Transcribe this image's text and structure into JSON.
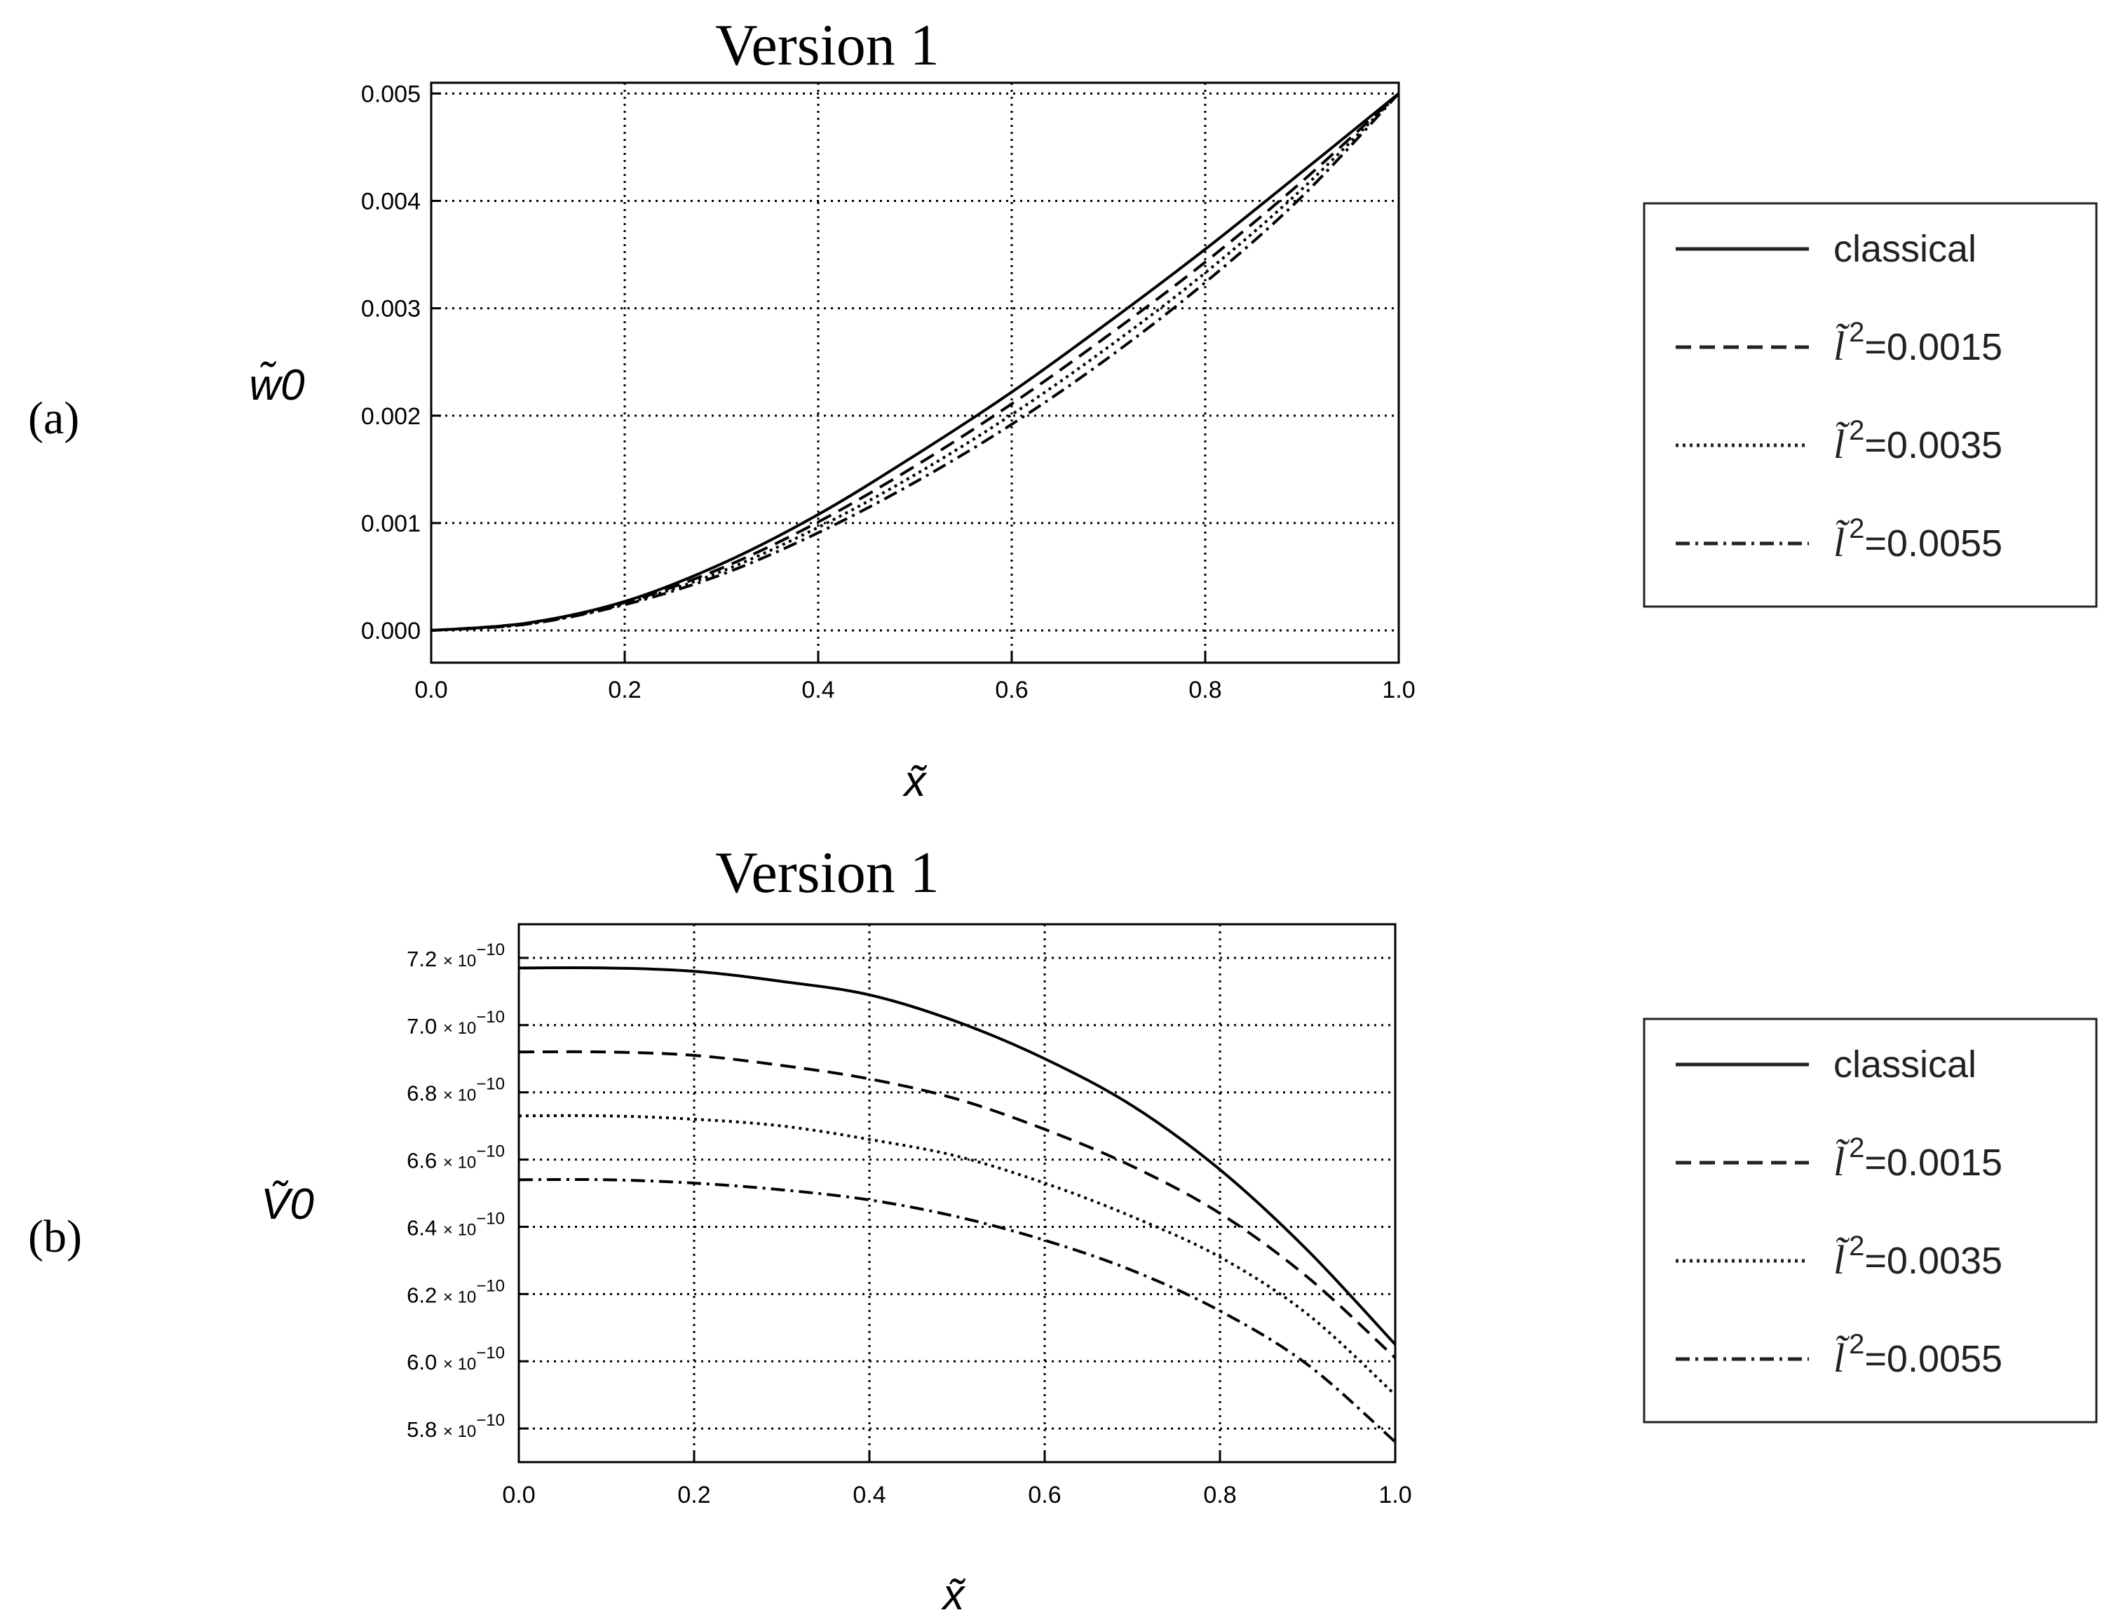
{
  "chart_data": [
    {
      "type": "line",
      "panel_label": "(a)",
      "title": "Version 1",
      "xlabel": "x̃",
      "ylabel": "w̃0",
      "xlim": [
        0,
        1
      ],
      "ylim": [
        -0.0003,
        0.0051
      ],
      "x_ticks": [
        "0.0",
        "0.2",
        "0.4",
        "0.6",
        "0.8",
        "1.0"
      ],
      "y_ticks": [
        "0.000",
        "0.001",
        "0.002",
        "0.003",
        "0.004",
        "0.005"
      ],
      "grid": true,
      "legend_position": "right",
      "x": [
        0.0,
        0.1,
        0.2,
        0.3,
        0.4,
        0.5,
        0.6,
        0.7,
        0.8,
        0.9,
        1.0
      ],
      "series": [
        {
          "name": "classical",
          "style": "solid",
          "values": [
            0.0,
            7e-05,
            0.00027,
            0.00062,
            0.00108,
            0.00163,
            0.00222,
            0.00287,
            0.00355,
            0.00427,
            0.005
          ]
        },
        {
          "name": "=0.0015",
          "style": "dashed",
          "values": [
            0.0,
            7e-05,
            0.00026,
            0.00058,
            0.00101,
            0.00153,
            0.00211,
            0.00275,
            0.00343,
            0.00418,
            0.005
          ]
        },
        {
          "name": "=0.0035",
          "style": "dotted",
          "values": [
            0.0,
            6e-05,
            0.00025,
            0.00055,
            0.00096,
            0.00145,
            0.00201,
            0.00264,
            0.00333,
            0.00411,
            0.005
          ]
        },
        {
          "name": "=0.0055",
          "style": "dashdot",
          "values": [
            0.0,
            6e-05,
            0.00024,
            0.00052,
            0.00091,
            0.00138,
            0.00192,
            0.00254,
            0.00324,
            0.00404,
            0.005
          ]
        }
      ]
    },
    {
      "type": "line",
      "panel_label": "(b)",
      "title": "Version 1",
      "xlabel": "x̃",
      "ylabel": "Ṽ0",
      "xlim": [
        0,
        1
      ],
      "ylim": [
        5.7,
        7.3
      ],
      "y_scale_note": "×10^-10",
      "x_ticks": [
        "0.0",
        "0.2",
        "0.4",
        "0.6",
        "0.8",
        "1.0"
      ],
      "y_ticks": [
        {
          "mantissa": "5.8",
          "value": 5.8
        },
        {
          "mantissa": "6.0",
          "value": 6.0
        },
        {
          "mantissa": "6.2",
          "value": 6.2
        },
        {
          "mantissa": "6.4",
          "value": 6.4
        },
        {
          "mantissa": "6.6",
          "value": 6.6
        },
        {
          "mantissa": "6.8",
          "value": 6.8
        },
        {
          "mantissa": "7.0",
          "value": 7.0
        },
        {
          "mantissa": "7.2",
          "value": 7.2
        }
      ],
      "y_tick_multiplier": "× 10",
      "y_tick_exponent": "−10",
      "grid": true,
      "legend_position": "right",
      "x": [
        0.0,
        0.1,
        0.2,
        0.3,
        0.4,
        0.5,
        0.6,
        0.7,
        0.8,
        0.9,
        1.0
      ],
      "series": [
        {
          "name": "classical",
          "style": "solid",
          "values": [
            7.17,
            7.17,
            7.16,
            7.13,
            7.09,
            7.01,
            6.9,
            6.76,
            6.57,
            6.33,
            6.05
          ]
        },
        {
          "name": "=0.0015",
          "style": "dashed",
          "values": [
            6.92,
            6.92,
            6.91,
            6.88,
            6.84,
            6.78,
            6.69,
            6.58,
            6.44,
            6.25,
            6.01
          ]
        },
        {
          "name": "=0.0035",
          "style": "dotted",
          "values": [
            6.73,
            6.73,
            6.72,
            6.7,
            6.66,
            6.61,
            6.53,
            6.43,
            6.31,
            6.14,
            5.9
          ]
        },
        {
          "name": "=0.0055",
          "style": "dashdot",
          "values": [
            6.54,
            6.54,
            6.53,
            6.51,
            6.48,
            6.43,
            6.36,
            6.27,
            6.15,
            5.99,
            5.76
          ]
        }
      ]
    }
  ],
  "legend": {
    "items": [
      {
        "style": "solid",
        "label": "classical",
        "symbol": ""
      },
      {
        "style": "dashed",
        "label": "=0.0015",
        "symbol": "l̃"
      },
      {
        "style": "dotted",
        "label": "=0.0035",
        "symbol": "l̃"
      },
      {
        "style": "dashdot",
        "label": "=0.0055",
        "symbol": "l̃"
      }
    ],
    "superscript": "2"
  }
}
